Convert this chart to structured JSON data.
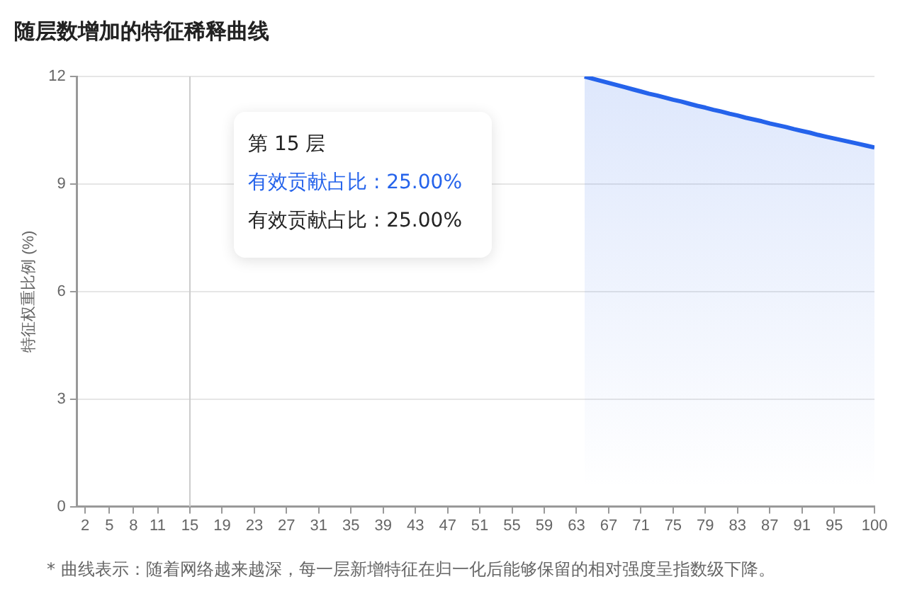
{
  "chart_data": {
    "type": "area",
    "title": "随层数增加的特征稀释曲线",
    "ylabel": "特征权重比例 (%)",
    "x": [
      64,
      65,
      66,
      67,
      68,
      69,
      70,
      71,
      72,
      73,
      74,
      75,
      76,
      77,
      78,
      79,
      80,
      81,
      82,
      83,
      84,
      85,
      86,
      87,
      88,
      89,
      90,
      91,
      92,
      93,
      94,
      95,
      96,
      97,
      98,
      99,
      100
    ],
    "series": [
      {
        "color": "#2563eb",
        "values": [
          12.0,
          11.94,
          11.88,
          11.82,
          11.76,
          11.7,
          11.64,
          11.58,
          11.52,
          11.47,
          11.41,
          11.35,
          11.3,
          11.24,
          11.18,
          11.13,
          11.07,
          11.02,
          10.96,
          10.91,
          10.85,
          10.8,
          10.75,
          10.69,
          10.64,
          10.59,
          10.53,
          10.48,
          10.43,
          10.37,
          10.32,
          10.27,
          10.22,
          10.17,
          10.12,
          10.07,
          10.02
        ]
      }
    ],
    "xlim": [
      1,
      100
    ],
    "xticks": [
      2,
      5,
      8,
      11,
      15,
      19,
      23,
      27,
      31,
      35,
      39,
      43,
      47,
      51,
      55,
      59,
      63,
      67,
      71,
      75,
      79,
      83,
      87,
      91,
      95,
      100
    ],
    "ylim": [
      0,
      12
    ],
    "yticks": [
      0,
      3,
      6,
      9,
      12
    ],
    "grid": "y",
    "ref_lines": [
      {
        "axis": "x",
        "value": 15,
        "color": "#cccccc"
      }
    ],
    "annotations": [
      "第 15 层",
      "有效贡献占比 : 25.00%",
      "有效贡献占比 : 25.00%",
      "* 曲线表示：随着网络越来越深，每一层新增特征在归一化后能够保留的相对强度呈指数级下降。"
    ]
  }
}
